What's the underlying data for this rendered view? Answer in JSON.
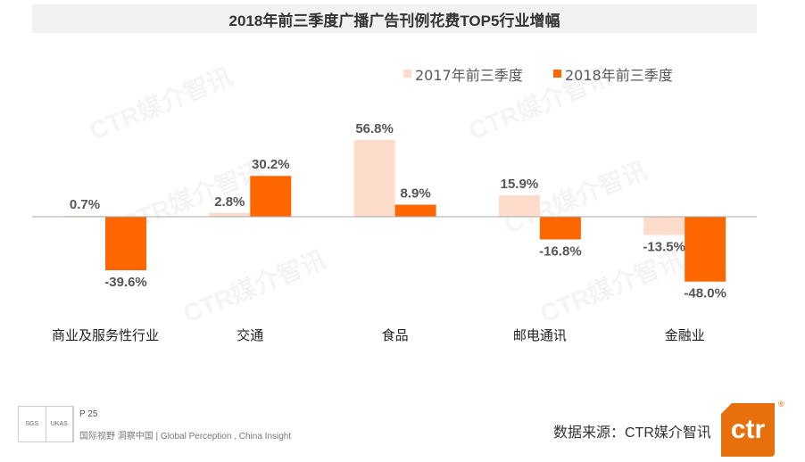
{
  "title": "2018年前三季度广播广告刊例花费TOP5行业增幅",
  "watermark": "CTR媒介智讯",
  "chart_data": {
    "type": "bar",
    "title": "2018年前三季度广播广告刊例花费TOP5行业增幅",
    "categories": [
      "商业及服务性行业",
      "交通",
      "食品",
      "邮电通讯",
      "金融业"
    ],
    "series": [
      {
        "name": "2017年前三季度",
        "color": "#fddccb",
        "values": [
          0.7,
          2.8,
          56.8,
          15.9,
          -13.5
        ],
        "labels": [
          "0.7%",
          "2.8%",
          "56.8%",
          "15.9%",
          "-13.5%"
        ]
      },
      {
        "name": "2018年前三季度",
        "color": "#fe6600",
        "values": [
          -39.6,
          30.2,
          8.9,
          -16.8,
          -48.0
        ],
        "labels": [
          "-39.6%",
          "30.2%",
          "8.9%",
          "-16.8%",
          "-48.0%"
        ]
      }
    ],
    "legend": "top-right",
    "unit": "%",
    "grid": false
  },
  "footer": {
    "page": "P 25",
    "tagline": "国际视野  洞察中国 |  Global Perception , China Insight",
    "source": "数据来源：CTR媒介智讯",
    "logo_text": "ctr",
    "reg": "®",
    "cert_labels": [
      "SGS",
      "UKAS"
    ]
  }
}
